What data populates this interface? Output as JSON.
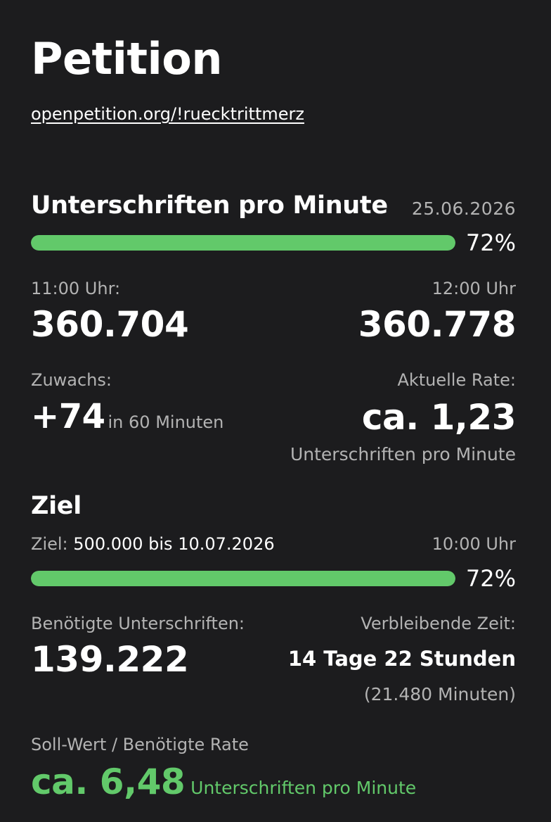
{
  "header": {
    "title": "Petition",
    "link": "openpetition.org/!ruecktrittmerz"
  },
  "rate_section": {
    "heading": "Unterschriften pro Minute",
    "date": "25.06.2026",
    "progress_fraction": 0.72,
    "progress_label": "72%",
    "from_time_label": "11:00 Uhr:",
    "from_count": "360.704",
    "to_time_label": "12:00 Uhr",
    "to_count": "360.778",
    "growth_label": "Zuwachs:",
    "growth_value": "+74",
    "growth_suffix": "in 60 Minuten",
    "current_rate_label": "Aktuelle Rate:",
    "current_rate_value": "ca. 1,23",
    "current_rate_unit": "Unterschriften pro Minute"
  },
  "goal_section": {
    "heading": "Ziel",
    "goal_prefix": "Ziel:",
    "goal_text": "500.000 bis 10.07.2026",
    "goal_time": "10:00 Uhr",
    "progress_fraction": 0.72,
    "progress_label": "72%",
    "needed_label": "Benötigte Unterschriften:",
    "needed_value": "139.222",
    "remaining_label": "Verbleibende Zeit:",
    "remaining_value": "14 Tage 22 Stunden",
    "remaining_minutes": "(21.480 Minuten)",
    "required_rate_label": "Soll-Wert / Benötigte Rate",
    "required_rate_value": "ca. 6,48",
    "required_rate_unit": "Unterschriften pro Minute"
  },
  "colors": {
    "background": "#1c1c1e",
    "accent_green": "#62c96a",
    "muted_text": "#b3b3b3"
  }
}
